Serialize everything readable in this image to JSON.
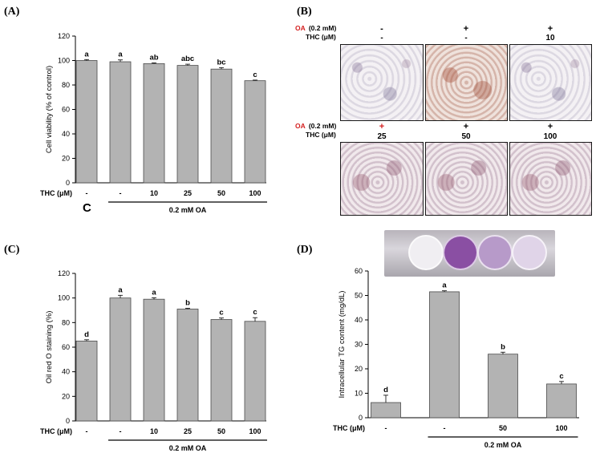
{
  "panel_labels": {
    "a": "(A)",
    "b": "(B)",
    "c": "(C)",
    "d": "(D)"
  },
  "panel_b": {
    "oa_label": "OA",
    "oa_conc": "(0.2 mM)",
    "thc_label": "THC (μM)",
    "row1": {
      "oa": [
        "-",
        "+",
        "+"
      ],
      "thc": [
        "-",
        "-",
        "10"
      ]
    },
    "row2": {
      "oa": [
        "+",
        "+",
        "+"
      ],
      "thc": [
        "25",
        "50",
        "100"
      ]
    },
    "red_color": "#d42020"
  },
  "panel_a_extra": "C",
  "panel_d_wells": {
    "colors": [
      "#f0eef2",
      "#8a4fa3",
      "#b79ac9",
      "#e0d4e8"
    ]
  },
  "chart_data": [
    {
      "type": "bar",
      "panel": "A",
      "ylabel": "Cell viability (% of control)",
      "xlabel": "THC (μM)",
      "categories": [
        "-",
        "-",
        "10",
        "25",
        "50",
        "100"
      ],
      "values": [
        100,
        99,
        97.5,
        96,
        93,
        83.5
      ],
      "errors": [
        0.8,
        1.5,
        0.6,
        1.0,
        1.2,
        0.5
      ],
      "sig_letters": [
        "a",
        "a",
        "ab",
        "abc",
        "bc",
        "c"
      ],
      "ylim": [
        0,
        120
      ],
      "yticks": [
        0,
        20,
        40,
        60,
        80,
        100,
        120
      ],
      "group_label": "0.2 mM OA",
      "group_range": [
        1,
        5
      ]
    },
    {
      "type": "bar",
      "panel": "C",
      "ylabel": "Oil red O staining (%)",
      "xlabel": "THC (μM)",
      "categories": [
        "-",
        "-",
        "10",
        "25",
        "50",
        "100"
      ],
      "values": [
        65,
        100,
        99,
        91,
        82.5,
        81
      ],
      "errors": [
        1.0,
        2.2,
        1.2,
        0.6,
        1.2,
        3.0
      ],
      "sig_letters": [
        "d",
        "a",
        "a",
        "b",
        "c",
        "c"
      ],
      "ylim": [
        0,
        120
      ],
      "yticks": [
        0,
        20,
        40,
        60,
        80,
        100,
        120
      ],
      "group_label": "0.2 mM OA",
      "group_range": [
        1,
        5
      ]
    },
    {
      "type": "bar",
      "panel": "D",
      "ylabel": "Intracellular TG content (mg/dL)",
      "xlabel": "THC (μM)",
      "categories": [
        "-",
        "-",
        "50",
        "100"
      ],
      "values": [
        6.2,
        51.5,
        26,
        13.8
      ],
      "errors": [
        3.0,
        0.4,
        0.8,
        1.0
      ],
      "sig_letters": [
        "d",
        "a",
        "b",
        "c"
      ],
      "ylim": [
        0,
        60
      ],
      "yticks": [
        0,
        10,
        20,
        30,
        40,
        50,
        60
      ],
      "group_label": "0.2 mM OA",
      "group_range": [
        1,
        3
      ]
    }
  ]
}
